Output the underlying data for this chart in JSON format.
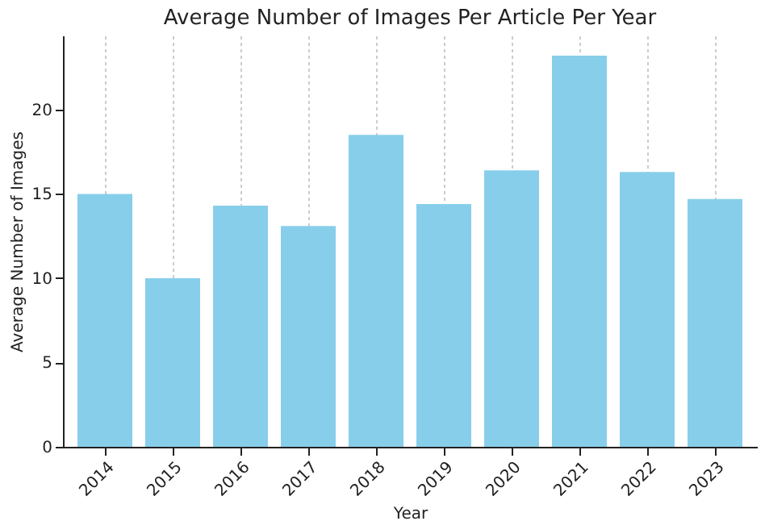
{
  "chart_data": {
    "type": "bar",
    "title": "Average Number of Images Per Article Per Year",
    "xlabel": "Year",
    "ylabel": "Average Number of Images",
    "categories": [
      "2014",
      "2015",
      "2016",
      "2017",
      "2018",
      "2019",
      "2020",
      "2021",
      "2022",
      "2023"
    ],
    "values": [
      15.0,
      10.0,
      14.3,
      13.1,
      18.5,
      14.4,
      16.4,
      23.2,
      16.3,
      14.7
    ],
    "color": "#87ceeb",
    "ylim": [
      0,
      24.4
    ],
    "yticks": [
      0,
      5,
      10,
      15,
      20
    ],
    "grid": "x"
  }
}
